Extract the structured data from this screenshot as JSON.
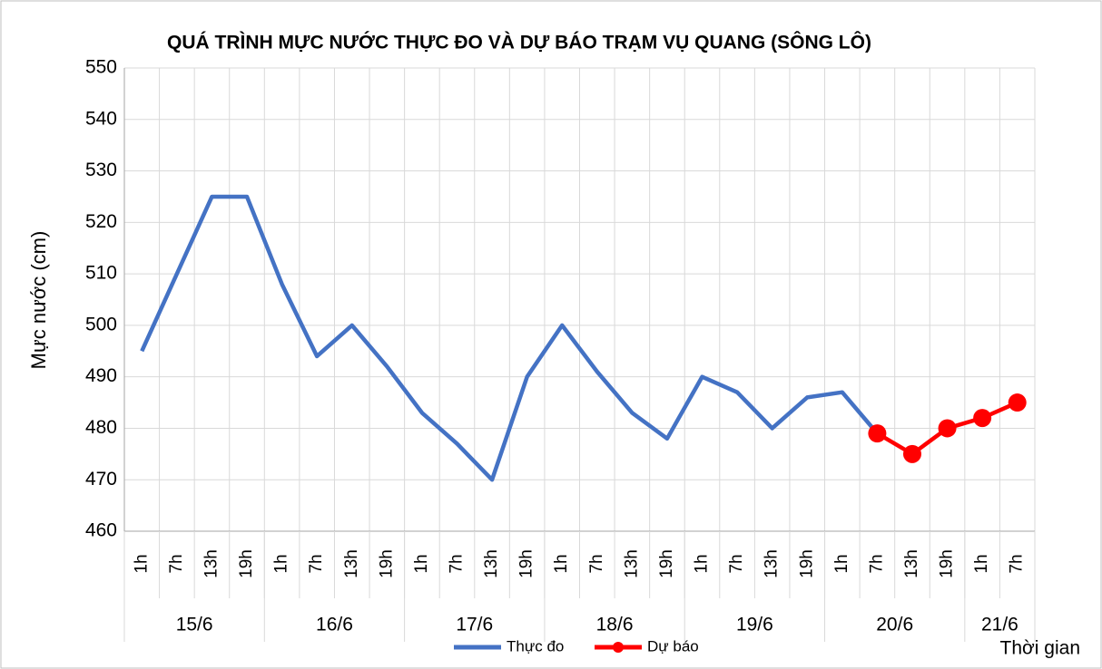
{
  "chart_data": {
    "type": "line",
    "title": "QUÁ TRÌNH MỰC NƯỚC THỰC ĐO VÀ DỰ BÁO TRẠM VỤ QUANG (SÔNG LÔ)",
    "y_label": "Mực nước (cm)",
    "x_label": "Thời gian",
    "categories": [
      "1h",
      "7h",
      "13h",
      "19h",
      "1h",
      "7h",
      "13h",
      "19h",
      "1h",
      "7h",
      "13h",
      "19h",
      "1h",
      "7h",
      "13h",
      "19h",
      "1h",
      "7h",
      "13h",
      "19h",
      "1h",
      "7h",
      "13h",
      "19h",
      "1h",
      "7h"
    ],
    "groups": [
      {
        "label": "15/6",
        "count": 4
      },
      {
        "label": "16/6",
        "count": 4
      },
      {
        "label": "17/6",
        "count": 4
      },
      {
        "label": "18/6",
        "count": 4
      },
      {
        "label": "19/6",
        "count": 4
      },
      {
        "label": "20/6",
        "count": 4
      },
      {
        "label": "21/6",
        "count": 2
      }
    ],
    "series": [
      {
        "name": "Thực đo",
        "color": "#4472c4",
        "markers": false,
        "values": [
          495,
          510,
          525,
          525,
          508,
          494,
          500,
          492,
          483,
          477,
          470,
          490,
          500,
          491,
          483,
          478,
          490,
          487,
          480,
          486,
          487,
          479,
          null,
          null,
          null,
          null
        ]
      },
      {
        "name": "Dự báo",
        "color": "#ff0000",
        "markers": true,
        "values": [
          null,
          null,
          null,
          null,
          null,
          null,
          null,
          null,
          null,
          null,
          null,
          null,
          null,
          null,
          null,
          null,
          null,
          null,
          null,
          null,
          null,
          479,
          475,
          480,
          482,
          485
        ]
      }
    ],
    "ylim": [
      460,
      550
    ],
    "yticks": [
      460,
      470,
      480,
      490,
      500,
      510,
      520,
      530,
      540,
      550
    ],
    "grid": true
  }
}
